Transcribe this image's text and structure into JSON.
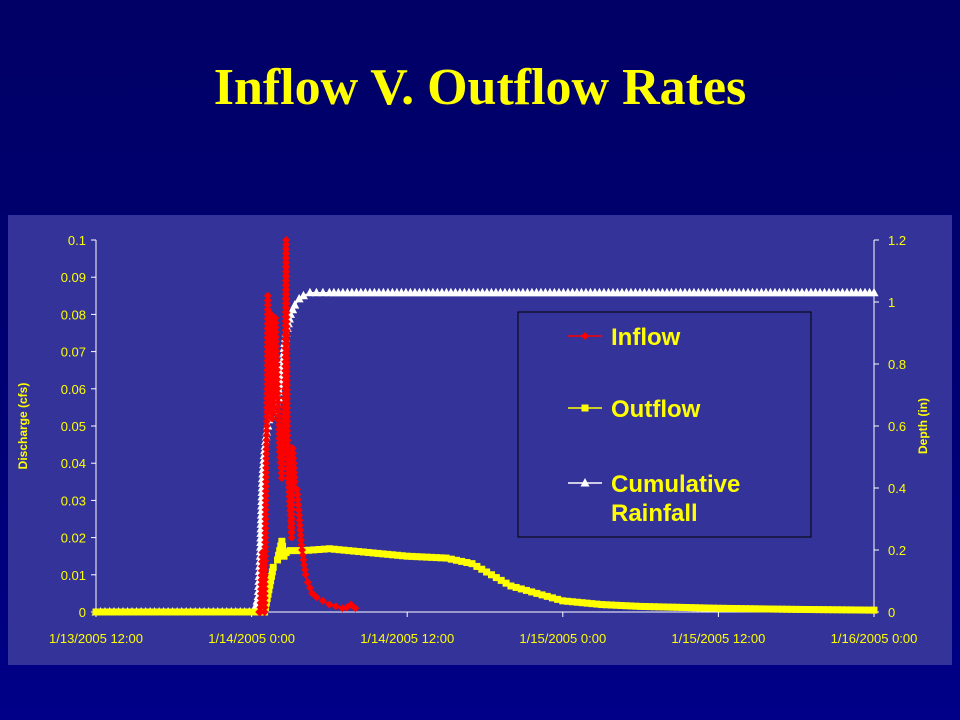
{
  "slide": {
    "title": "Inflow V. Outflow Rates"
  },
  "colors": {
    "background": "#000077",
    "panel": "#333399",
    "text": "#ffff00",
    "inflow": "#ff0000",
    "outflow": "#ffff00",
    "rainfall": "#ffffff"
  },
  "chart_data": {
    "type": "line",
    "title": "",
    "ylabel": "Discharge (cfs)",
    "y2label": "Depth (in)",
    "xlabel": "",
    "ylim": [
      0,
      0.1
    ],
    "y2lim": [
      0,
      1.2
    ],
    "y_ticks": [
      "0.1",
      "0.09",
      "0.08",
      "0.07",
      "0.06",
      "0.05",
      "0.04",
      "0.03",
      "0.02",
      "0.01",
      "0"
    ],
    "y2_ticks": [
      "1.2",
      "1",
      "0.8",
      "0.6",
      "0.4",
      "0.2",
      "0"
    ],
    "x_ticks": [
      "1/13/2005 12:00",
      "1/14/2005 0:00",
      "1/14/2005 12:00",
      "1/15/2005 0:00",
      "1/15/2005 12:00",
      "1/16/2005 0:00"
    ],
    "x_tick_hours": [
      0,
      12,
      24,
      36,
      48,
      60
    ],
    "legend_position": "right",
    "grid": false,
    "series": [
      {
        "name": "Inflow",
        "axis": "left",
        "marker": "diamond",
        "x": [
          "1/14/2005 0:35",
          "1/14/2005 0:40",
          "1/14/2005 0:50",
          "1/14/2005 1:00",
          "1/14/2005 1:05",
          "1/14/2005 1:10",
          "1/14/2005 1:15",
          "1/14/2005 1:20",
          "1/14/2005 1:25",
          "1/14/2005 1:30",
          "1/14/2005 1:35",
          "1/14/2005 1:40",
          "1/14/2005 1:50",
          "1/14/2005 2:00",
          "1/14/2005 2:10",
          "1/14/2005 2:20",
          "1/14/2005 2:30",
          "1/14/2005 2:35",
          "1/14/2005 2:40",
          "1/14/2005 2:45",
          "1/14/2005 2:50",
          "1/14/2005 2:55",
          "1/14/2005 3:00",
          "1/14/2005 3:05",
          "1/14/2005 3:10",
          "1/14/2005 3:15",
          "1/14/2005 3:20",
          "1/14/2005 3:30",
          "1/14/2005 3:40",
          "1/14/2005 3:50",
          "1/14/2005 4:00",
          "1/14/2005 4:10",
          "1/14/2005 4:20",
          "1/14/2005 4:40",
          "1/14/2005 5:00",
          "1/14/2005 5:30",
          "1/14/2005 6:00",
          "1/14/2005 6:30",
          "1/14/2005 7:00",
          "1/14/2005 7:20",
          "1/14/2005 7:40",
          "1/14/2005 8:00"
        ],
        "values": [
          0,
          0,
          0.016,
          0,
          0.03,
          0.05,
          0.085,
          0.06,
          0.07,
          0.08,
          0.052,
          0.055,
          0.079,
          0.06,
          0.043,
          0.036,
          0.05,
          0.06,
          0.1,
          0.05,
          0.036,
          0.031,
          0.026,
          0.02,
          0.044,
          0.04,
          0.035,
          0.033,
          0.026,
          0.018,
          0.014,
          0.01,
          0.008,
          0.005,
          0.004,
          0.003,
          0.002,
          0.0015,
          0.001,
          0.0012,
          0.002,
          0.001
        ]
      },
      {
        "name": "Outflow",
        "axis": "left",
        "marker": "square",
        "x": [
          "1/13/2005 12:00",
          "1/14/2005 0:00",
          "1/14/2005 1:00",
          "1/14/2005 1:20",
          "1/14/2005 1:40",
          "1/14/2005 2:00",
          "1/14/2005 2:20",
          "1/14/2005 2:30",
          "1/14/2005 2:40",
          "1/14/2005 3:00",
          "1/14/2005 4:00",
          "1/14/2005 6:00",
          "1/14/2005 9:00",
          "1/14/2005 12:00",
          "1/14/2005 15:00",
          "1/14/2005 17:00",
          "1/14/2005 18:30",
          "1/14/2005 20:00",
          "1/14/2005 22:00",
          "1/15/2005 0:00",
          "1/15/2005 3:00",
          "1/15/2005 6:00",
          "1/15/2005 12:00",
          "1/15/2005 18:00",
          "1/16/2005 0:00"
        ],
        "values": [
          0,
          0,
          0,
          0.006,
          0.012,
          0.014,
          0.019,
          0.015,
          0.016,
          0.0165,
          0.0165,
          0.017,
          0.016,
          0.015,
          0.0145,
          0.013,
          0.01,
          0.007,
          0.005,
          0.003,
          0.002,
          0.0015,
          0.001,
          0.0007,
          0.0005
        ]
      },
      {
        "name": "Cumulative Rainfall",
        "axis": "right",
        "marker": "triangle",
        "x": [
          "1/13/2005 12:00",
          "1/14/2005 0:10",
          "1/14/2005 0:20",
          "1/14/2005 0:30",
          "1/14/2005 0:40",
          "1/14/2005 0:50",
          "1/14/2005 1:00",
          "1/14/2005 1:10",
          "1/14/2005 1:20",
          "1/14/2005 1:40",
          "1/14/2005 2:00",
          "1/14/2005 2:10",
          "1/14/2005 2:20",
          "1/14/2005 2:30",
          "1/14/2005 2:40",
          "1/14/2005 3:00",
          "1/14/2005 3:20",
          "1/14/2005 3:40",
          "1/14/2005 4:00",
          "1/14/2005 4:30",
          "1/14/2005 5:00",
          "1/14/2005 6:00",
          "1/16/2005 0:00"
        ],
        "values": [
          0,
          0,
          0.02,
          0.05,
          0.18,
          0.43,
          0.52,
          0.58,
          0.62,
          0.65,
          0.67,
          0.71,
          0.78,
          0.85,
          0.9,
          0.96,
          0.99,
          1.01,
          1.02,
          1.03,
          1.03,
          1.03,
          1.03
        ]
      }
    ]
  }
}
